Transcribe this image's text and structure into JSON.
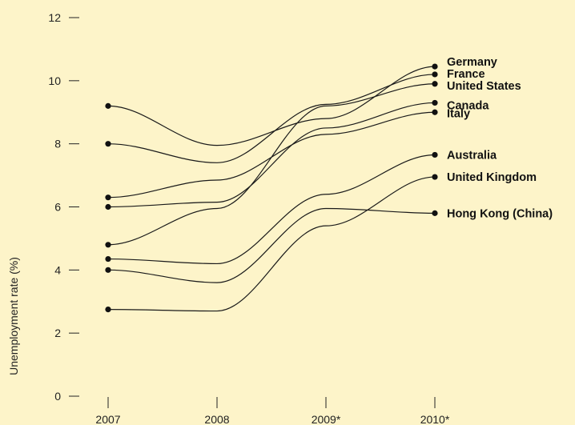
{
  "chart_data": {
    "type": "line",
    "title": "",
    "xlabel": "",
    "ylabel": "Unemployment rate (%)",
    "categories": [
      "2007",
      "2008",
      "2009*",
      "2010*"
    ],
    "ylim": [
      0,
      12
    ],
    "yticks": [
      "0",
      "2",
      "4",
      "6",
      "8",
      "10",
      "12"
    ],
    "grid": false,
    "legend": "direct labels at right end of lines",
    "series": [
      {
        "name": "Germany",
        "values": [
          9.2,
          7.95,
          8.8,
          10.45
        ]
      },
      {
        "name": "France",
        "values": [
          8.0,
          7.4,
          9.25,
          10.2
        ]
      },
      {
        "name": "United States",
        "values": [
          4.8,
          5.95,
          9.2,
          9.9
        ]
      },
      {
        "name": "Canada",
        "values": [
          6.0,
          6.15,
          8.5,
          9.3
        ]
      },
      {
        "name": "Italy",
        "values": [
          6.3,
          6.85,
          8.3,
          9.0
        ]
      },
      {
        "name": "Australia",
        "values": [
          4.35,
          4.2,
          6.4,
          7.65
        ]
      },
      {
        "name": "United Kingdom",
        "values": [
          2.75,
          2.7,
          5.4,
          6.95
        ]
      },
      {
        "name": "Hong Kong (China)",
        "values": [
          4.0,
          3.6,
          5.95,
          5.8
        ]
      }
    ],
    "colors": {
      "background": "#fdf4c9",
      "line": "#1a1a1a"
    }
  }
}
